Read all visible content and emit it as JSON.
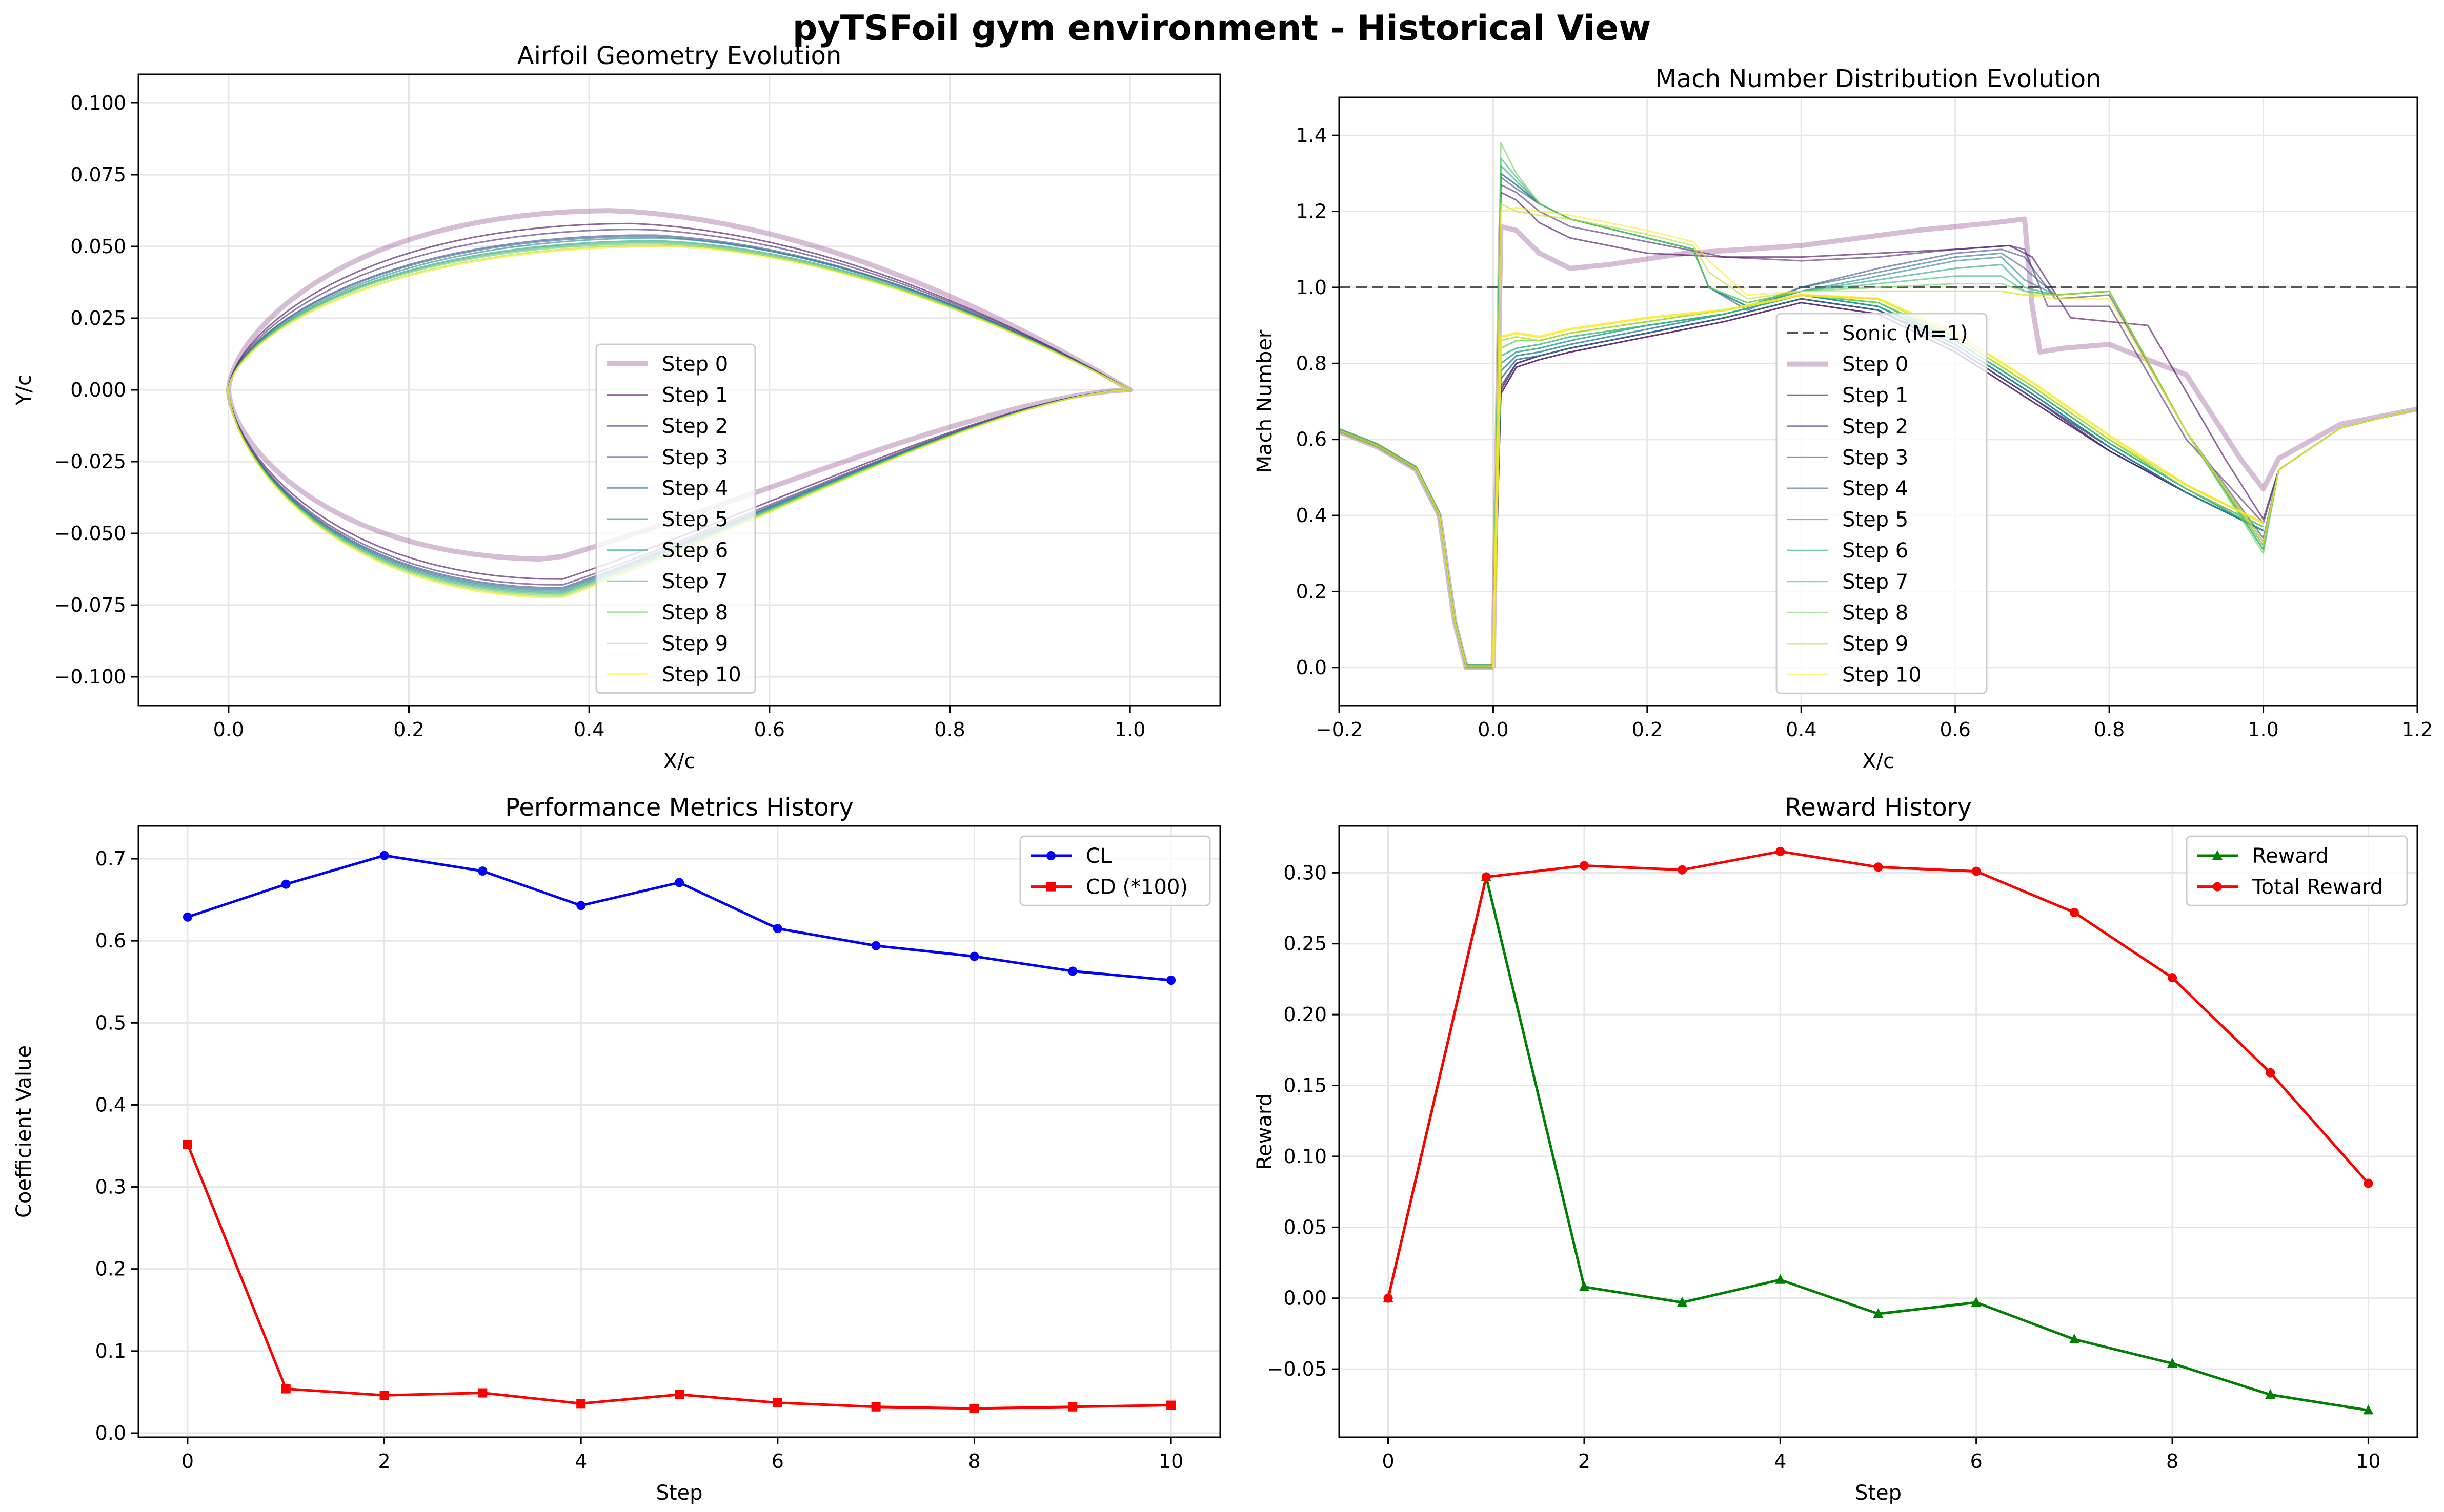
{
  "suptitle": "pyTSFoil gym environment - Historical View",
  "colors": {
    "steps": [
      "#440154",
      "#482878",
      "#3e4989",
      "#31688e",
      "#26828e",
      "#1f9e89",
      "#35b779",
      "#6ece58",
      "#b5de2b",
      "#fde725"
    ],
    "step0": "#8b3f86",
    "sonic": "#555555",
    "cl": "#0000ff",
    "cd": "#ff0000",
    "reward": "#008000",
    "total_reward": "#ff0000",
    "grid": "#e6e6e6"
  },
  "chart_data": [
    {
      "type": "line",
      "title": "Airfoil Geometry Evolution",
      "xlabel": "X/c",
      "ylabel": "Y/c",
      "xlim": [
        -0.1,
        1.1
      ],
      "ylim": [
        -0.11,
        0.11
      ],
      "xticks": [
        0.0,
        0.2,
        0.4,
        0.6,
        0.8,
        1.0
      ],
      "yticks": [
        -0.1,
        -0.075,
        -0.05,
        -0.025,
        0.0,
        0.025,
        0.05,
        0.075,
        0.1
      ],
      "xtick_labels": [
        "0.0",
        "0.2",
        "0.4",
        "0.6",
        "0.8",
        "1.0"
      ],
      "ytick_labels": [
        "−0.100",
        "−0.075",
        "−0.050",
        "−0.025",
        "0.000",
        "0.025",
        "0.050",
        "0.075",
        "0.100"
      ],
      "grid": true,
      "legend_position": "center-right",
      "series": [
        {
          "name": "Step 0",
          "upper_max": 0.0625,
          "upper_xmax": 0.43,
          "lower_min": -0.059,
          "lower_xmin": 0.36
        },
        {
          "name": "Step 1",
          "upper_max": 0.058,
          "upper_xmax": 0.45,
          "lower_min": -0.066,
          "lower_xmin": 0.37
        },
        {
          "name": "Step 2",
          "upper_max": 0.056,
          "upper_xmax": 0.46,
          "lower_min": -0.068,
          "lower_xmin": 0.37
        },
        {
          "name": "Step 3",
          "upper_max": 0.054,
          "upper_xmax": 0.47,
          "lower_min": -0.069,
          "lower_xmin": 0.37
        },
        {
          "name": "Step 4",
          "upper_max": 0.0535,
          "upper_xmax": 0.47,
          "lower_min": -0.0695,
          "lower_xmin": 0.37
        },
        {
          "name": "Step 5",
          "upper_max": 0.053,
          "upper_xmax": 0.48,
          "lower_min": -0.07,
          "lower_xmin": 0.37
        },
        {
          "name": "Step 6",
          "upper_max": 0.052,
          "upper_xmax": 0.48,
          "lower_min": -0.0705,
          "lower_xmin": 0.37
        },
        {
          "name": "Step 7",
          "upper_max": 0.0515,
          "upper_xmax": 0.48,
          "lower_min": -0.071,
          "lower_xmin": 0.37
        },
        {
          "name": "Step 8",
          "upper_max": 0.051,
          "upper_xmax": 0.48,
          "lower_min": -0.0715,
          "lower_xmin": 0.37
        },
        {
          "name": "Step 9",
          "upper_max": 0.0505,
          "upper_xmax": 0.49,
          "lower_min": -0.072,
          "lower_xmin": 0.37
        },
        {
          "name": "Step 10",
          "upper_max": 0.05,
          "upper_xmax": 0.49,
          "lower_min": -0.0725,
          "lower_xmin": 0.37
        }
      ]
    },
    {
      "type": "line",
      "title": "Mach Number Distribution Evolution",
      "xlabel": "X/c",
      "ylabel": "Mach Number",
      "xlim": [
        -0.2,
        1.2
      ],
      "ylim": [
        -0.1,
        1.5
      ],
      "xticks": [
        -0.2,
        0.0,
        0.2,
        0.4,
        0.6,
        0.8,
        1.0,
        1.2
      ],
      "yticks": [
        0.0,
        0.2,
        0.4,
        0.6,
        0.8,
        1.0,
        1.2,
        1.4
      ],
      "xtick_labels": [
        "−0.2",
        "0.0",
        "0.2",
        "0.4",
        "0.6",
        "0.8",
        "1.0",
        "1.2"
      ],
      "ytick_labels": [
        "0.0",
        "0.2",
        "0.4",
        "0.6",
        "0.8",
        "1.0",
        "1.2",
        "1.4"
      ],
      "grid": true,
      "legend_position": "lower-center",
      "sonic": {
        "name": "Sonic (M=1)",
        "y": 1.0
      },
      "lower_surface": {
        "x": [
          -0.2,
          -0.15,
          -0.1,
          -0.07,
          -0.05,
          -0.035,
          -0.02,
          0.0
        ],
        "y": [
          0.62,
          0.58,
          0.52,
          0.4,
          0.12,
          0.0,
          0.0,
          0.0
        ]
      },
      "series": [
        {
          "name": "Step 0",
          "x": [
            0.0,
            0.01,
            0.03,
            0.06,
            0.1,
            0.15,
            0.25,
            0.4,
            0.55,
            0.65,
            0.69,
            0.7,
            0.71,
            0.74,
            0.8,
            0.9,
            0.97,
            1.0,
            1.02,
            1.1,
            1.2
          ],
          "y": [
            0.0,
            1.16,
            1.15,
            1.09,
            1.05,
            1.06,
            1.09,
            1.11,
            1.15,
            1.17,
            1.18,
            0.95,
            0.83,
            0.84,
            0.85,
            0.77,
            0.55,
            0.47,
            0.55,
            0.64,
            0.68
          ]
        },
        {
          "name": "Step 1",
          "x": [
            0.0,
            0.01,
            0.03,
            0.06,
            0.1,
            0.2,
            0.3,
            0.4,
            0.5,
            0.6,
            0.67,
            0.7,
            0.75,
            0.85,
            0.95,
            1.0,
            1.02,
            1.1,
            1.2
          ],
          "y": [
            0.0,
            1.25,
            1.23,
            1.17,
            1.13,
            1.09,
            1.08,
            1.08,
            1.09,
            1.1,
            1.11,
            1.08,
            0.92,
            0.9,
            0.55,
            0.39,
            0.52,
            0.63,
            0.68
          ]
        },
        {
          "name": "Step 2",
          "x": [
            0.0,
            0.01,
            0.03,
            0.06,
            0.1,
            0.2,
            0.3,
            0.4,
            0.5,
            0.6,
            0.67,
            0.69,
            0.72,
            0.8,
            0.9,
            1.0,
            1.02,
            1.1,
            1.2
          ],
          "y": [
            0.0,
            1.27,
            1.25,
            1.2,
            1.16,
            1.12,
            1.08,
            1.07,
            1.08,
            1.1,
            1.11,
            1.1,
            0.95,
            0.95,
            0.6,
            0.38,
            0.52,
            0.63,
            0.68
          ]
        },
        {
          "name": "Step 3",
          "x": [
            0.0,
            0.01,
            0.03,
            0.06,
            0.1,
            0.2,
            0.26,
            0.28,
            0.33,
            0.4,
            0.5,
            0.6,
            0.66,
            0.69,
            0.73,
            0.8,
            0.9,
            1.0,
            1.02,
            1.1,
            1.2
          ],
          "y": [
            0.0,
            1.29,
            1.26,
            1.22,
            1.18,
            1.13,
            1.1,
            1.0,
            0.94,
            1.0,
            1.05,
            1.09,
            1.1,
            1.08,
            0.97,
            0.98,
            0.62,
            0.34,
            0.52,
            0.63,
            0.68
          ]
        },
        {
          "name": "Step 4",
          "x": [
            0.0,
            0.01,
            0.03,
            0.06,
            0.1,
            0.2,
            0.26,
            0.28,
            0.33,
            0.4,
            0.5,
            0.6,
            0.66,
            0.69,
            0.73,
            0.8,
            0.9,
            1.0,
            1.02,
            1.1,
            1.2
          ],
          "y": [
            0.0,
            1.3,
            1.27,
            1.22,
            1.18,
            1.13,
            1.1,
            1.0,
            0.95,
            1.0,
            1.04,
            1.08,
            1.09,
            1.05,
            0.98,
            0.99,
            0.62,
            0.33,
            0.52,
            0.63,
            0.68
          ]
        },
        {
          "name": "Step 5",
          "x": [
            0.0,
            0.01,
            0.03,
            0.06,
            0.1,
            0.2,
            0.26,
            0.28,
            0.33,
            0.4,
            0.5,
            0.6,
            0.66,
            0.69,
            0.73,
            0.8,
            0.9,
            1.0,
            1.02,
            1.1,
            1.2
          ],
          "y": [
            0.0,
            1.3,
            1.27,
            1.22,
            1.18,
            1.13,
            1.1,
            1.0,
            0.95,
            0.99,
            1.03,
            1.07,
            1.08,
            1.02,
            0.98,
            0.99,
            0.62,
            0.32,
            0.52,
            0.63,
            0.68
          ]
        },
        {
          "name": "Step 6",
          "x": [
            0.0,
            0.01,
            0.03,
            0.06,
            0.1,
            0.2,
            0.26,
            0.28,
            0.33,
            0.4,
            0.5,
            0.6,
            0.66,
            0.69,
            0.73,
            0.8,
            0.9,
            1.0,
            1.02,
            1.1,
            1.2
          ],
          "y": [
            0.0,
            1.32,
            1.28,
            1.22,
            1.18,
            1.13,
            1.1,
            1.0,
            0.95,
            0.99,
            1.02,
            1.05,
            1.06,
            1.0,
            0.98,
            0.99,
            0.62,
            0.31,
            0.52,
            0.63,
            0.68
          ]
        },
        {
          "name": "Step 7",
          "x": [
            0.0,
            0.01,
            0.03,
            0.06,
            0.1,
            0.2,
            0.26,
            0.28,
            0.33,
            0.4,
            0.5,
            0.6,
            0.66,
            0.69,
            0.73,
            0.8,
            0.9,
            1.0,
            1.02,
            1.1,
            1.2
          ],
          "y": [
            0.0,
            1.34,
            1.29,
            1.22,
            1.18,
            1.13,
            1.1,
            1.0,
            0.96,
            0.99,
            1.01,
            1.03,
            1.03,
            0.99,
            0.98,
            0.99,
            0.62,
            0.31,
            0.52,
            0.63,
            0.68
          ]
        },
        {
          "name": "Step 8",
          "x": [
            0.0,
            0.01,
            0.03,
            0.06,
            0.1,
            0.2,
            0.26,
            0.28,
            0.33,
            0.4,
            0.5,
            0.6,
            0.66,
            0.69,
            0.73,
            0.8,
            0.9,
            1.0,
            1.02,
            1.1,
            1.2
          ],
          "y": [
            0.0,
            1.38,
            1.3,
            1.22,
            1.18,
            1.13,
            1.1,
            1.0,
            0.96,
            0.99,
            1.0,
            1.01,
            1.01,
            0.99,
            0.98,
            0.99,
            0.62,
            0.3,
            0.52,
            0.63,
            0.68
          ]
        },
        {
          "name": "Step 9",
          "x": [
            0.0,
            0.01,
            0.03,
            0.06,
            0.1,
            0.2,
            0.26,
            0.28,
            0.33,
            0.4,
            0.5,
            0.6,
            0.66,
            0.69,
            0.73,
            0.8,
            0.9,
            1.0,
            1.02,
            1.1,
            1.2
          ],
          "y": [
            0.0,
            1.22,
            1.2,
            1.19,
            1.18,
            1.14,
            1.11,
            1.04,
            0.97,
            0.99,
            0.99,
            0.99,
            0.99,
            0.98,
            0.98,
            0.99,
            0.62,
            0.32,
            0.52,
            0.63,
            0.68
          ]
        },
        {
          "name": "Step 10",
          "x": [
            0.0,
            0.01,
            0.03,
            0.06,
            0.1,
            0.2,
            0.26,
            0.28,
            0.33,
            0.4,
            0.5,
            0.6,
            0.66,
            0.69,
            0.73,
            0.8,
            0.9,
            1.0,
            1.02,
            1.1,
            1.2
          ],
          "y": [
            0.0,
            1.2,
            1.21,
            1.2,
            1.19,
            1.15,
            1.12,
            1.07,
            0.98,
            0.99,
            0.99,
            0.99,
            0.99,
            0.98,
            0.97,
            0.97,
            0.62,
            0.33,
            0.52,
            0.63,
            0.68
          ]
        }
      ],
      "lower_branch": {
        "x": [
          0.0,
          0.01,
          0.03,
          0.06,
          0.1,
          0.2,
          0.3,
          0.4,
          0.5,
          0.6,
          0.7,
          0.8,
          0.9,
          1.0
        ],
        "series_y": [
          [
            0.0,
            0.72,
            0.79,
            0.81,
            0.83,
            0.87,
            0.91,
            0.96,
            0.93,
            0.83,
            0.7,
            0.57,
            0.46,
            0.36
          ],
          [
            0.0,
            0.73,
            0.8,
            0.82,
            0.84,
            0.88,
            0.92,
            0.97,
            0.94,
            0.84,
            0.71,
            0.57,
            0.46,
            0.36
          ],
          [
            0.0,
            0.74,
            0.8,
            0.82,
            0.84,
            0.88,
            0.92,
            0.97,
            0.94,
            0.84,
            0.71,
            0.58,
            0.46,
            0.36
          ],
          [
            0.0,
            0.76,
            0.81,
            0.82,
            0.84,
            0.88,
            0.92,
            0.97,
            0.94,
            0.85,
            0.72,
            0.58,
            0.46,
            0.36
          ],
          [
            0.0,
            0.78,
            0.82,
            0.83,
            0.85,
            0.89,
            0.93,
            0.98,
            0.95,
            0.85,
            0.72,
            0.58,
            0.46,
            0.36
          ],
          [
            0.0,
            0.8,
            0.83,
            0.84,
            0.86,
            0.9,
            0.93,
            0.98,
            0.95,
            0.86,
            0.73,
            0.59,
            0.47,
            0.36
          ],
          [
            0.0,
            0.82,
            0.84,
            0.85,
            0.87,
            0.9,
            0.93,
            0.98,
            0.96,
            0.86,
            0.73,
            0.59,
            0.47,
            0.37
          ],
          [
            0.0,
            0.84,
            0.86,
            0.86,
            0.88,
            0.91,
            0.94,
            0.98,
            0.96,
            0.87,
            0.74,
            0.6,
            0.47,
            0.37
          ],
          [
            0.0,
            0.86,
            0.87,
            0.86,
            0.88,
            0.91,
            0.94,
            0.98,
            0.97,
            0.87,
            0.74,
            0.6,
            0.48,
            0.38
          ],
          [
            0.0,
            0.87,
            0.88,
            0.87,
            0.89,
            0.92,
            0.94,
            0.98,
            0.97,
            0.88,
            0.75,
            0.61,
            0.48,
            0.38
          ]
        ]
      }
    },
    {
      "type": "line",
      "title": "Performance Metrics History",
      "xlabel": "Step",
      "ylabel": "Coefficient Value",
      "xlim": [
        -0.5,
        10.5
      ],
      "ylim": [
        -0.005,
        0.74
      ],
      "xticks": [
        0,
        2,
        4,
        6,
        8,
        10
      ],
      "yticks": [
        0.0,
        0.1,
        0.2,
        0.3,
        0.4,
        0.5,
        0.6,
        0.7
      ],
      "xtick_labels": [
        "0",
        "2",
        "4",
        "6",
        "8",
        "10"
      ],
      "ytick_labels": [
        "0.0",
        "0.1",
        "0.2",
        "0.3",
        "0.4",
        "0.5",
        "0.6",
        "0.7"
      ],
      "grid": true,
      "legend_position": "top-right",
      "x": [
        0,
        1,
        2,
        3,
        4,
        5,
        6,
        7,
        8,
        9,
        10
      ],
      "series": [
        {
          "name": "CL",
          "marker": "circle",
          "values": [
            0.629,
            0.669,
            0.704,
            0.685,
            0.643,
            0.671,
            0.615,
            0.594,
            0.581,
            0.563,
            0.552
          ]
        },
        {
          "name": "CD (*100)",
          "marker": "square",
          "values": [
            0.352,
            0.054,
            0.046,
            0.049,
            0.036,
            0.047,
            0.037,
            0.032,
            0.03,
            0.032,
            0.034
          ]
        }
      ]
    },
    {
      "type": "line",
      "title": "Reward History",
      "xlabel": "Step",
      "ylabel": "Reward",
      "xlim": [
        -0.5,
        10.5
      ],
      "ylim": [
        -0.098,
        0.333
      ],
      "xticks": [
        0,
        2,
        4,
        6,
        8,
        10
      ],
      "yticks": [
        -0.05,
        0.0,
        0.05,
        0.1,
        0.15,
        0.2,
        0.25,
        0.3
      ],
      "xtick_labels": [
        "0",
        "2",
        "4",
        "6",
        "8",
        "10"
      ],
      "ytick_labels": [
        "−0.05",
        "0.00",
        "0.05",
        "0.10",
        "0.15",
        "0.20",
        "0.25",
        "0.30"
      ],
      "grid": true,
      "legend_position": "top-right",
      "x": [
        0,
        1,
        2,
        3,
        4,
        5,
        6,
        7,
        8,
        9,
        10
      ],
      "series": [
        {
          "name": "Reward",
          "marker": "triangle",
          "values": [
            0.0,
            0.297,
            0.008,
            -0.003,
            0.013,
            -0.011,
            -0.003,
            -0.029,
            -0.046,
            -0.068,
            -0.079
          ]
        },
        {
          "name": "Total Reward",
          "marker": "circle",
          "values": [
            0.0,
            0.297,
            0.305,
            0.302,
            0.315,
            0.304,
            0.301,
            0.272,
            0.226,
            0.159,
            0.081
          ]
        }
      ]
    }
  ]
}
